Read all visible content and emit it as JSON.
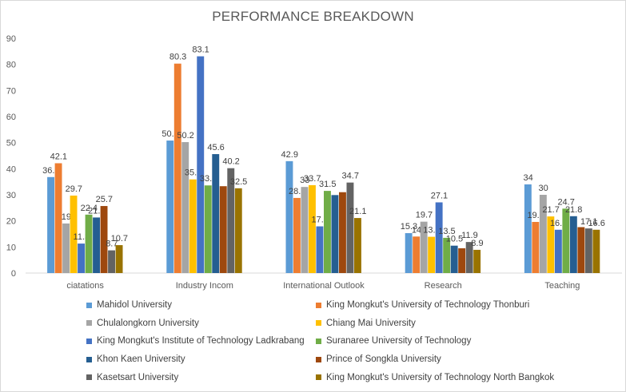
{
  "chart_data": {
    "type": "bar",
    "title": "PERFORMANCE BREAKDOWN",
    "xlabel": "",
    "ylabel": "",
    "ylim": [
      0,
      90
    ],
    "yticks": [
      0,
      10,
      20,
      30,
      40,
      50,
      60,
      70,
      80,
      90
    ],
    "grid": false,
    "legend_position": "bottom",
    "categories": [
      "ciatations",
      "Industry Incom",
      "International Outlook",
      "Research",
      "Teaching"
    ],
    "series": [
      {
        "name": "Mahidol University",
        "color": "#5B9BD5",
        "values": [
          36.8,
          50.8,
          42.9,
          15.3,
          34
        ]
      },
      {
        "name": "King Mongkut's University of Technology Thonburi",
        "color": "#ED7D31",
        "values": [
          42.1,
          80.3,
          28.8,
          14,
          19.6
        ]
      },
      {
        "name": "Chulalongkorn University",
        "color": "#A5A5A5",
        "values": [
          19,
          50.2,
          33,
          19.7,
          30
        ]
      },
      {
        "name": "Chiang Mai University",
        "color": "#FFC000",
        "values": [
          29.7,
          35.9,
          33.7,
          13.9,
          21.7
        ]
      },
      {
        "name": "King Mongkut's Institute of Technology Ladkrabang",
        "color": "#4472C4",
        "values": [
          11.3,
          83.1,
          17.9,
          27.1,
          16.6
        ]
      },
      {
        "name": "Suranaree University of Technology",
        "color": "#70AD47",
        "values": [
          22.4,
          33.6,
          31.5,
          13.5,
          24.7
        ]
      },
      {
        "name": "Khon Kaen University",
        "color": "#255E91",
        "values": [
          21.3,
          45.6,
          29.9,
          10.5,
          21.8
        ]
      },
      {
        "name": "Prince of Songkla University",
        "color": "#9E480E",
        "values": [
          25.7,
          33.3,
          31,
          9.5,
          17.6
        ]
      },
      {
        "name": "Kasetsart University",
        "color": "#636363",
        "values": [
          8.7,
          40.2,
          34.7,
          11.9,
          17.1
        ]
      },
      {
        "name": "King Mongkut's University of Technology North Bangkok",
        "color": "#997300",
        "values": [
          10.7,
          32.5,
          21.1,
          8.9,
          16.6
        ]
      }
    ],
    "data_labels": [
      [
        "36.8",
        "50.8",
        "42.9",
        "15.3",
        "34"
      ],
      [
        "42.1",
        "80.3",
        "28.8",
        "14",
        "19.6"
      ],
      [
        "19",
        "50.2",
        "33",
        "19.7",
        "30"
      ],
      [
        "29.7",
        "35.9",
        "33.7",
        "13.9",
        "21.7"
      ],
      [
        "11.3",
        "83.1",
        "17.9",
        "27.1",
        "16.6"
      ],
      [
        "22.4",
        "33.6",
        "31.5",
        "13.5",
        "24.7"
      ],
      [
        "21.3",
        "45.6",
        "",
        "10.5",
        "21.8"
      ],
      [
        "25.7",
        "",
        "",
        "",
        ""
      ],
      [
        "8.7",
        "40.2",
        "34.7",
        "11.9",
        "17.1"
      ],
      [
        "10.7",
        "32.5",
        "21.1",
        "8.9",
        "16.6"
      ]
    ]
  }
}
